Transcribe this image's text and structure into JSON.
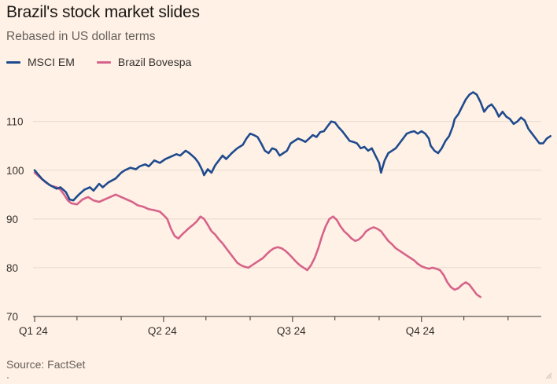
{
  "header": {
    "title": "Brazil's stock market slides",
    "subtitle": "Rebased in US dollar terms"
  },
  "footer": {
    "source": "Source: FactSet"
  },
  "colors": {
    "background": "#fff1e5",
    "msci": "#1f4b8e",
    "brazil": "#d6638a",
    "grid": "#e6d9ce",
    "axis": "#33302e"
  },
  "chart_data": {
    "type": "line",
    "title": "Brazil's stock market slides",
    "subtitle": "Rebased in US dollar terms",
    "xlabel": "",
    "ylabel": "",
    "ylim": [
      70,
      118
    ],
    "yticks": [
      70,
      80,
      90,
      100,
      110
    ],
    "xlim": [
      0,
      275
    ],
    "xticks": [
      {
        "label": "Q1 24",
        "x": 0
      },
      {
        "label": "Q2 24",
        "x": 70
      },
      {
        "label": "Q3 24",
        "x": 140
      },
      {
        "label": "Q4 24",
        "x": 210
      }
    ],
    "minor_xticks": [
      23,
      47,
      93,
      117,
      163,
      187,
      233,
      257
    ],
    "legend_position": "top-left",
    "grid": true,
    "series": [
      {
        "name": "MSCI EM",
        "color": "#1f4b8e",
        "points": [
          [
            0,
            100
          ],
          [
            4,
            98.2
          ],
          [
            8,
            97
          ],
          [
            12,
            96.2
          ],
          [
            14,
            96.5
          ],
          [
            17,
            95.5
          ],
          [
            19,
            94
          ],
          [
            21,
            93.8
          ],
          [
            24,
            95
          ],
          [
            27,
            96
          ],
          [
            30,
            96.5
          ],
          [
            32,
            95.8
          ],
          [
            35,
            97.2
          ],
          [
            37,
            96.5
          ],
          [
            40,
            97.5
          ],
          [
            44,
            98.3
          ],
          [
            47,
            99.5
          ],
          [
            49,
            100
          ],
          [
            52,
            100.5
          ],
          [
            55,
            100.2
          ],
          [
            57,
            100.8
          ],
          [
            60,
            101.2
          ],
          [
            62,
            100.8
          ],
          [
            65,
            102
          ],
          [
            68,
            101.5
          ],
          [
            71,
            102.3
          ],
          [
            74,
            102.8
          ],
          [
            77,
            103.3
          ],
          [
            79,
            103
          ],
          [
            82,
            104
          ],
          [
            84,
            103.5
          ],
          [
            87,
            102.5
          ],
          [
            89,
            101.5
          ],
          [
            91,
            100
          ],
          [
            92,
            99
          ],
          [
            94,
            100.2
          ],
          [
            96,
            99.5
          ],
          [
            98,
            101
          ],
          [
            100,
            102
          ],
          [
            102,
            103
          ],
          [
            104,
            102.3
          ],
          [
            107,
            103.5
          ],
          [
            110,
            104.5
          ],
          [
            113,
            105.2
          ],
          [
            115,
            106.5
          ],
          [
            117,
            107.5
          ],
          [
            119,
            107.2
          ],
          [
            121,
            106.8
          ],
          [
            123,
            105.5
          ],
          [
            125,
            104
          ],
          [
            127,
            103.5
          ],
          [
            129,
            104.5
          ],
          [
            131,
            104.2
          ],
          [
            133,
            103
          ],
          [
            135,
            103.5
          ],
          [
            137,
            104
          ],
          [
            139,
            105.5
          ],
          [
            141,
            106
          ],
          [
            143,
            106.5
          ],
          [
            145,
            106.2
          ],
          [
            147,
            105.8
          ],
          [
            149,
            106.5
          ],
          [
            151,
            107.2
          ],
          [
            153,
            106.8
          ],
          [
            155,
            107.8
          ],
          [
            157,
            108
          ],
          [
            159,
            109
          ],
          [
            161,
            110
          ],
          [
            163,
            109.8
          ],
          [
            165,
            108.8
          ],
          [
            167,
            108
          ],
          [
            169,
            107
          ],
          [
            171,
            106
          ],
          [
            173,
            105.8
          ],
          [
            175,
            105.5
          ],
          [
            177,
            104.5
          ],
          [
            179,
            104.8
          ],
          [
            181,
            104
          ],
          [
            183,
            104.5
          ],
          [
            185,
            103
          ],
          [
            187,
            101.5
          ],
          [
            188,
            99.5
          ],
          [
            190,
            102
          ],
          [
            192,
            103.5
          ],
          [
            194,
            104
          ],
          [
            196,
            104.5
          ],
          [
            198,
            105.5
          ],
          [
            200,
            106.5
          ],
          [
            202,
            107.5
          ],
          [
            204,
            107.8
          ],
          [
            206,
            108
          ],
          [
            208,
            107.5
          ],
          [
            210,
            108
          ],
          [
            212,
            107.5
          ],
          [
            214,
            106.5
          ],
          [
            215,
            105
          ],
          [
            217,
            104
          ],
          [
            219,
            103.5
          ],
          [
            221,
            104.5
          ],
          [
            223,
            106
          ],
          [
            225,
            107
          ],
          [
            227,
            109
          ],
          [
            228,
            110.5
          ],
          [
            230,
            111.5
          ],
          [
            232,
            113
          ],
          [
            234,
            114.5
          ],
          [
            236,
            115.5
          ],
          [
            238,
            116
          ],
          [
            240,
            115.5
          ],
          [
            242,
            114
          ],
          [
            244,
            112
          ],
          [
            246,
            113
          ],
          [
            248,
            113.5
          ],
          [
            250,
            112.5
          ],
          [
            252,
            111
          ],
          [
            254,
            112
          ],
          [
            256,
            111
          ],
          [
            258,
            110.5
          ],
          [
            260,
            109.5
          ],
          [
            262,
            110
          ],
          [
            264,
            110.8
          ],
          [
            266,
            110.2
          ],
          [
            268,
            108.5
          ],
          [
            270,
            107.5
          ],
          [
            272,
            106.5
          ],
          [
            274,
            105.5
          ],
          [
            276,
            105.5
          ],
          [
            278,
            106.5
          ],
          [
            280,
            107
          ]
        ]
      },
      {
        "name": "Brazil Bovespa",
        "color": "#d6638a",
        "points": [
          [
            0,
            99.5
          ],
          [
            3,
            98.5
          ],
          [
            6,
            97.5
          ],
          [
            9,
            96.8
          ],
          [
            12,
            96.5
          ],
          [
            14,
            96
          ],
          [
            16,
            95
          ],
          [
            18,
            93.8
          ],
          [
            20,
            93.2
          ],
          [
            23,
            93
          ],
          [
            26,
            94
          ],
          [
            29,
            94.5
          ],
          [
            32,
            93.8
          ],
          [
            35,
            93.5
          ],
          [
            38,
            94
          ],
          [
            41,
            94.5
          ],
          [
            44,
            95
          ],
          [
            47,
            94.5
          ],
          [
            50,
            94
          ],
          [
            53,
            93.5
          ],
          [
            56,
            92.8
          ],
          [
            59,
            92.5
          ],
          [
            62,
            92
          ],
          [
            65,
            91.8
          ],
          [
            68,
            91.5
          ],
          [
            70,
            90.8
          ],
          [
            72,
            90
          ],
          [
            74,
            88
          ],
          [
            76,
            86.5
          ],
          [
            78,
            86
          ],
          [
            80,
            86.8
          ],
          [
            82,
            87.5
          ],
          [
            84,
            88.2
          ],
          [
            86,
            88.8
          ],
          [
            88,
            89.5
          ],
          [
            90,
            90.5
          ],
          [
            92,
            90
          ],
          [
            94,
            88.8
          ],
          [
            96,
            87.5
          ],
          [
            98,
            86.8
          ],
          [
            100,
            85.8
          ],
          [
            102,
            85
          ],
          [
            104,
            84
          ],
          [
            106,
            83
          ],
          [
            108,
            82
          ],
          [
            110,
            81
          ],
          [
            112,
            80.5
          ],
          [
            114,
            80.2
          ],
          [
            116,
            80
          ],
          [
            118,
            80.5
          ],
          [
            120,
            81
          ],
          [
            122,
            81.5
          ],
          [
            124,
            82
          ],
          [
            126,
            82.8
          ],
          [
            128,
            83.5
          ],
          [
            130,
            84
          ],
          [
            132,
            84.2
          ],
          [
            134,
            84
          ],
          [
            136,
            83.5
          ],
          [
            138,
            82.8
          ],
          [
            140,
            82
          ],
          [
            142,
            81.2
          ],
          [
            144,
            80.5
          ],
          [
            146,
            80
          ],
          [
            148,
            79.5
          ],
          [
            150,
            80.5
          ],
          [
            152,
            82
          ],
          [
            154,
            84
          ],
          [
            156,
            86.5
          ],
          [
            158,
            88.5
          ],
          [
            160,
            90
          ],
          [
            162,
            90.5
          ],
          [
            164,
            89.8
          ],
          [
            166,
            88.5
          ],
          [
            168,
            87.5
          ],
          [
            170,
            86.8
          ],
          [
            172,
            86
          ],
          [
            174,
            85.5
          ],
          [
            176,
            85.8
          ],
          [
            178,
            86.5
          ],
          [
            180,
            87.5
          ],
          [
            182,
            88
          ],
          [
            184,
            88.3
          ],
          [
            186,
            88
          ],
          [
            188,
            87.5
          ],
          [
            190,
            86.5
          ],
          [
            192,
            85.5
          ],
          [
            194,
            84.8
          ],
          [
            196,
            84
          ],
          [
            198,
            83.5
          ],
          [
            200,
            83
          ],
          [
            202,
            82.5
          ],
          [
            204,
            82
          ],
          [
            206,
            81.5
          ],
          [
            208,
            80.8
          ],
          [
            210,
            80.3
          ],
          [
            212,
            80
          ],
          [
            214,
            79.8
          ],
          [
            216,
            80
          ],
          [
            218,
            79.8
          ],
          [
            220,
            79.5
          ],
          [
            222,
            78.5
          ],
          [
            224,
            77
          ],
          [
            226,
            76
          ],
          [
            228,
            75.5
          ],
          [
            230,
            75.8
          ],
          [
            232,
            76.5
          ],
          [
            234,
            77
          ],
          [
            236,
            76.5
          ],
          [
            238,
            75.5
          ],
          [
            240,
            74.5
          ],
          [
            242,
            74
          ]
        ]
      }
    ]
  }
}
